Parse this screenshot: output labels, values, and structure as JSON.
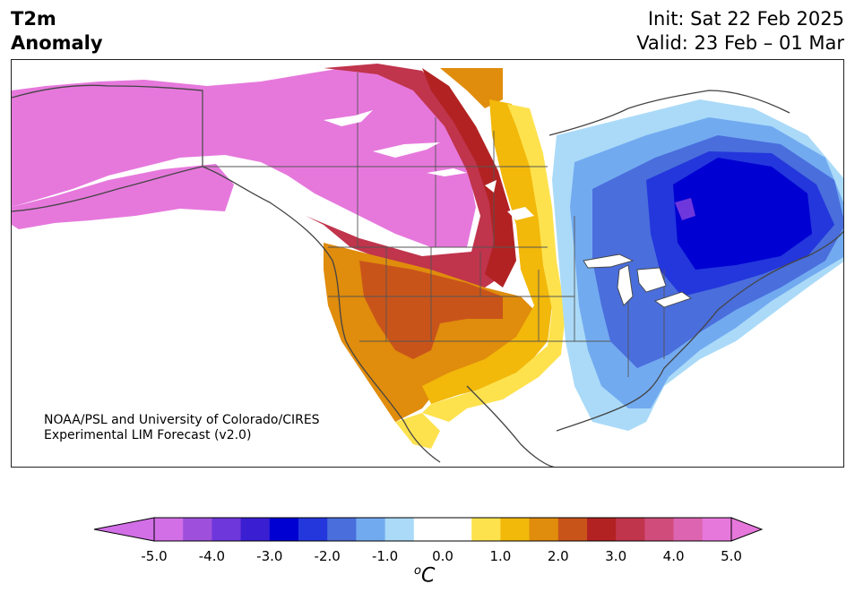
{
  "header": {
    "title_line1": "T2m",
    "title_line2": "Anomaly",
    "init": "Init: Sat 22 Feb 2025",
    "valid": "Valid: 23 Feb – 01 Mar"
  },
  "credit": {
    "line1": "NOAA/PSL and University of Colorado/CIRES",
    "line2": "Experimental LIM Forecast (v2.0)"
  },
  "colorbar": {
    "unit_base": "C",
    "unit_super": "o",
    "tick_labels": [
      "-5.0",
      "-4.0",
      "-3.0",
      "-2.0",
      "-1.0",
      "0.0",
      "1.0",
      "2.0",
      "3.0",
      "4.0",
      "5.0"
    ],
    "colors": [
      "#d26ee6",
      "#9e50dc",
      "#6e37dc",
      "#3a1ed2",
      "#0000d2",
      "#2337dc",
      "#4a6edc",
      "#72aaf0",
      "#aadaf8",
      "#ffffff",
      "#ffffff",
      "#fde24e",
      "#f2b80a",
      "#e08c0c",
      "#c9541a",
      "#b22222",
      "#c0344c",
      "#d04c7a",
      "#dc64b0",
      "#e678dc"
    ],
    "extend_low_color": "#d26ee6",
    "extend_high_color": "#e678dc"
  },
  "map": {
    "region": "North America",
    "variable": "2 m temperature anomaly",
    "land_color": "#ffffff",
    "lake_color": "#ffffff",
    "border_color": "#444444"
  }
}
